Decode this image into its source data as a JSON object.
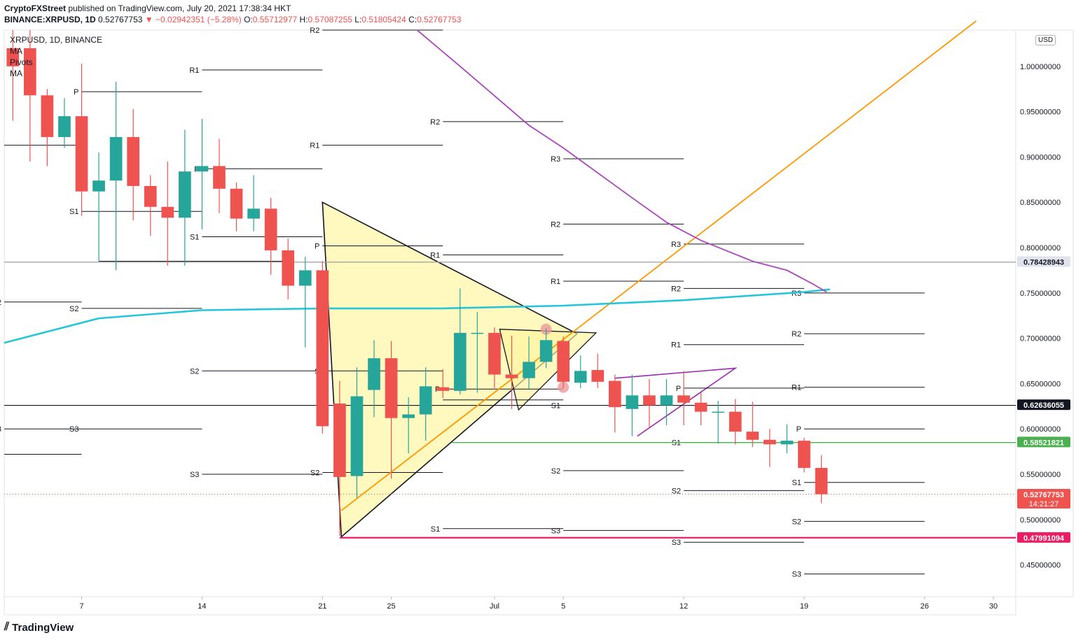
{
  "header": {
    "publisher": "CryptoFXStreet",
    "published_text": "published on TradingView.com, July 20, 2021 17:38:34 HKT",
    "symbol_line": "BINANCE:XRPUSD, 1D",
    "last": "0.52767753",
    "change": "−0.02942351 (−5.28%)",
    "o_label": "O:",
    "o": "0.55712977",
    "h_label": "H:",
    "h": "0.57087255",
    "l_label": "L:",
    "l": "0.51805424",
    "c_label": "C:",
    "c": "0.52767753"
  },
  "legend": {
    "symbol": "XRPUSD, 1D, BINANCE",
    "items": [
      "MA",
      "Pivots",
      "MA"
    ]
  },
  "branding": {
    "logo_text": "TradingView"
  },
  "currency_badge": "USD",
  "colors": {
    "up": "#26a69a",
    "down": "#ef5350",
    "ma_cyan": "#26c6da",
    "ma_purple": "#ab47bc",
    "trend_orange": "#ff9800",
    "support_red": "#e91e63",
    "support_green": "#4caf50",
    "triangle_fill": "#fff59d"
  },
  "chart_data": {
    "type": "candlestick",
    "timeframe": "1D",
    "ylim": [
      0.415,
      1.04
    ],
    "y_ticks": [
      0.45,
      0.5,
      0.55,
      0.6,
      0.65,
      0.7,
      0.75,
      0.8,
      0.85,
      0.9,
      0.95,
      1.0
    ],
    "y_tick_labels": [
      "0.45000000",
      "0.50000000",
      "0.55000000",
      "0.60000000",
      "0.65000000",
      "0.70000000",
      "0.75000000",
      "0.80000000",
      "0.85000000",
      "0.90000000",
      "0.95000000",
      "1.00000000"
    ],
    "x_ticks": [
      {
        "day": 3,
        "label": "7"
      },
      {
        "day": 10,
        "label": "14"
      },
      {
        "day": 17,
        "label": "21"
      },
      {
        "day": 21,
        "label": "25"
      },
      {
        "day": 27,
        "label": "Jul"
      },
      {
        "day": 31,
        "label": "5"
      },
      {
        "day": 38,
        "label": "12"
      },
      {
        "day": 45,
        "label": "19"
      },
      {
        "day": 52,
        "label": "26"
      },
      {
        "day": 56,
        "label": "30"
      }
    ],
    "x_range": [
      -1.5,
      57.3
    ],
    "candles": [
      {
        "day": -1,
        "o": 1.02,
        "h": 1.04,
        "l": 0.94,
        "c": 1.0
      },
      {
        "day": 0,
        "o": 1.02,
        "h": 1.04,
        "l": 0.895,
        "c": 0.968
      },
      {
        "day": 1,
        "o": 0.968,
        "h": 0.975,
        "l": 0.89,
        "c": 0.922
      },
      {
        "day": 2,
        "o": 0.922,
        "h": 0.965,
        "l": 0.91,
        "c": 0.945
      },
      {
        "day": 3,
        "o": 0.945,
        "h": 1.003,
        "l": 0.835,
        "c": 0.862
      },
      {
        "day": 4,
        "o": 0.862,
        "h": 0.905,
        "l": 0.785,
        "c": 0.874
      },
      {
        "day": 5,
        "o": 0.874,
        "h": 0.983,
        "l": 0.775,
        "c": 0.922
      },
      {
        "day": 6,
        "o": 0.922,
        "h": 0.953,
        "l": 0.83,
        "c": 0.868
      },
      {
        "day": 7,
        "o": 0.868,
        "h": 0.88,
        "l": 0.813,
        "c": 0.845
      },
      {
        "day": 8,
        "o": 0.845,
        "h": 0.895,
        "l": 0.78,
        "c": 0.833
      },
      {
        "day": 9,
        "o": 0.833,
        "h": 0.93,
        "l": 0.78,
        "c": 0.884
      },
      {
        "day": 10,
        "o": 0.884,
        "h": 0.942,
        "l": 0.82,
        "c": 0.89
      },
      {
        "day": 11,
        "o": 0.89,
        "h": 0.92,
        "l": 0.838,
        "c": 0.865
      },
      {
        "day": 12,
        "o": 0.865,
        "h": 0.872,
        "l": 0.818,
        "c": 0.832
      },
      {
        "day": 13,
        "o": 0.832,
        "h": 0.88,
        "l": 0.818,
        "c": 0.843
      },
      {
        "day": 14,
        "o": 0.843,
        "h": 0.855,
        "l": 0.77,
        "c": 0.797
      },
      {
        "day": 15,
        "o": 0.797,
        "h": 0.81,
        "l": 0.743,
        "c": 0.758
      },
      {
        "day": 16,
        "o": 0.758,
        "h": 0.79,
        "l": 0.69,
        "c": 0.775
      },
      {
        "day": 17,
        "o": 0.775,
        "h": 0.785,
        "l": 0.595,
        "c": 0.603
      },
      {
        "day": 18,
        "o": 0.628,
        "h": 0.653,
        "l": 0.482,
        "c": 0.547
      },
      {
        "day": 19,
        "o": 0.548,
        "h": 0.668,
        "l": 0.524,
        "c": 0.636
      },
      {
        "day": 20,
        "o": 0.643,
        "h": 0.698,
        "l": 0.613,
        "c": 0.678
      },
      {
        "day": 21,
        "o": 0.678,
        "h": 0.697,
        "l": 0.545,
        "c": 0.612
      },
      {
        "day": 22,
        "o": 0.612,
        "h": 0.635,
        "l": 0.573,
        "c": 0.616
      },
      {
        "day": 23,
        "o": 0.616,
        "h": 0.668,
        "l": 0.587,
        "c": 0.647
      },
      {
        "day": 24,
        "o": 0.646,
        "h": 0.666,
        "l": 0.634,
        "c": 0.642
      },
      {
        "day": 25,
        "o": 0.642,
        "h": 0.755,
        "l": 0.638,
        "c": 0.706
      },
      {
        "day": 26,
        "o": 0.706,
        "h": 0.729,
        "l": 0.64,
        "c": 0.706
      },
      {
        "day": 27,
        "o": 0.706,
        "h": 0.712,
        "l": 0.645,
        "c": 0.66
      },
      {
        "day": 28,
        "o": 0.66,
        "h": 0.703,
        "l": 0.622,
        "c": 0.656
      },
      {
        "day": 29,
        "o": 0.656,
        "h": 0.702,
        "l": 0.644,
        "c": 0.674
      },
      {
        "day": 30,
        "o": 0.674,
        "h": 0.711,
        "l": 0.667,
        "c": 0.698
      },
      {
        "day": 31,
        "o": 0.697,
        "h": 0.702,
        "l": 0.645,
        "c": 0.652
      },
      {
        "day": 32,
        "o": 0.651,
        "h": 0.681,
        "l": 0.645,
        "c": 0.664
      },
      {
        "day": 33,
        "o": 0.665,
        "h": 0.683,
        "l": 0.645,
        "c": 0.652
      },
      {
        "day": 34,
        "o": 0.653,
        "h": 0.66,
        "l": 0.596,
        "c": 0.624
      },
      {
        "day": 35,
        "o": 0.622,
        "h": 0.66,
        "l": 0.592,
        "c": 0.637
      },
      {
        "day": 36,
        "o": 0.637,
        "h": 0.655,
        "l": 0.602,
        "c": 0.626
      },
      {
        "day": 37,
        "o": 0.626,
        "h": 0.655,
        "l": 0.604,
        "c": 0.637
      },
      {
        "day": 38,
        "o": 0.637,
        "h": 0.664,
        "l": 0.604,
        "c": 0.629
      },
      {
        "day": 39,
        "o": 0.629,
        "h": 0.64,
        "l": 0.604,
        "c": 0.619
      },
      {
        "day": 40,
        "o": 0.619,
        "h": 0.631,
        "l": 0.584,
        "c": 0.619
      },
      {
        "day": 41,
        "o": 0.619,
        "h": 0.633,
        "l": 0.583,
        "c": 0.597
      },
      {
        "day": 42,
        "o": 0.597,
        "h": 0.63,
        "l": 0.58,
        "c": 0.588
      },
      {
        "day": 43,
        "o": 0.588,
        "h": 0.6,
        "l": 0.558,
        "c": 0.583
      },
      {
        "day": 44,
        "o": 0.583,
        "h": 0.605,
        "l": 0.573,
        "c": 0.587
      },
      {
        "day": 45,
        "o": 0.587,
        "h": 0.59,
        "l": 0.552,
        "c": 0.557
      },
      {
        "day": 46,
        "o": 0.557,
        "h": 0.571,
        "l": 0.518,
        "c": 0.528
      }
    ],
    "price_tags": [
      {
        "value": 0.78428943,
        "label": "0.78428943",
        "style": "gray"
      },
      {
        "value": 0.62636055,
        "label": "0.62636055",
        "style": "black"
      },
      {
        "value": 0.58521821,
        "label": "0.58521821",
        "style": "green"
      },
      {
        "value": 0.52767753,
        "label": "0.52767753",
        "sub": "14:21:27",
        "style": "red"
      },
      {
        "value": 0.47991094,
        "label": "0.47991094",
        "style": "magenta"
      }
    ],
    "pivots": [
      {
        "x0": -1.5,
        "x1": 3,
        "levels": [
          [
            "",
            0.913
          ],
          [
            "S2",
            0.74
          ],
          [
            "S3",
            0.6
          ],
          [
            "",
            0.572
          ]
        ]
      },
      {
        "x0": 3,
        "x1": 10,
        "levels": [
          [
            "P",
            0.972
          ],
          [
            "S1",
            0.84
          ],
          [
            "S2",
            0.733
          ],
          [
            "S3",
            0.6
          ]
        ]
      },
      {
        "x0": 4,
        "x1": 15,
        "levels": [
          [
            "",
            0.785
          ]
        ]
      },
      {
        "x0": 10,
        "x1": 17,
        "levels": [
          [
            "R1",
            0.996
          ],
          [
            "P",
            0.887
          ],
          [
            "S1",
            0.812
          ],
          [
            "S2",
            0.664
          ],
          [
            "S3",
            0.55
          ]
        ]
      },
      {
        "x0": 17,
        "x1": 24,
        "levels": [
          [
            "R2",
            1.04
          ],
          [
            "R1",
            0.913
          ],
          [
            "P",
            0.802
          ],
          [
            "S",
            0.664
          ],
          [
            "S2",
            0.552
          ]
        ]
      },
      {
        "x0": 24,
        "x1": 31,
        "levels": [
          [
            "R2",
            0.939
          ],
          [
            "R1",
            0.792
          ],
          [
            "P",
            0.644
          ],
          [
            "",
            0.632
          ],
          [
            "S1",
            0.49
          ]
        ]
      },
      {
        "x0": 31,
        "x1": 38,
        "levels": [
          [
            "R3",
            0.898
          ],
          [
            "R2",
            0.826
          ],
          [
            "R1",
            0.763
          ],
          [
            "S1",
            0.626
          ],
          [
            "S2",
            0.554
          ],
          [
            "S3",
            0.488
          ]
        ]
      },
      {
        "x0": 38,
        "x1": 45,
        "levels": [
          [
            "R3",
            0.804
          ],
          [
            "R2",
            0.755
          ],
          [
            "R1",
            0.693
          ],
          [
            "P",
            0.645
          ],
          [
            "S1",
            0.585
          ],
          [
            "S2",
            0.532
          ],
          [
            "S3",
            0.475
          ]
        ]
      },
      {
        "x0": 45,
        "x1": 52,
        "levels": [
          [
            "R3",
            0.75
          ],
          [
            "R2",
            0.705
          ],
          [
            "R1",
            0.646
          ],
          [
            "P",
            0.6
          ],
          [
            "S1",
            0.541
          ],
          [
            "S2",
            0.498
          ],
          [
            "S3",
            0.44
          ]
        ]
      }
    ],
    "overlays": {
      "ma_cyan": [
        [
          -1.5,
          0.695
        ],
        [
          4,
          0.722
        ],
        [
          10,
          0.731
        ],
        [
          17,
          0.733
        ],
        [
          24,
          0.733
        ],
        [
          31,
          0.736
        ],
        [
          38,
          0.742
        ],
        [
          45,
          0.751
        ],
        [
          46.5,
          0.754
        ]
      ],
      "ma_purple": [
        [
          22.5,
          1.04
        ],
        [
          25,
          1.0
        ],
        [
          29,
          0.935
        ],
        [
          31,
          0.91
        ],
        [
          35,
          0.855
        ],
        [
          37,
          0.828
        ],
        [
          39,
          0.808
        ],
        [
          42,
          0.785
        ],
        [
          44,
          0.775
        ],
        [
          45.5,
          0.76
        ],
        [
          46.3,
          0.751
        ]
      ],
      "trend_orange": [
        [
          18.1,
          0.51
        ],
        [
          55,
          1.05
        ]
      ],
      "support_red": [
        [
          18,
          0.48
        ],
        [
          57.3,
          0.48
        ]
      ],
      "support_green": [
        [
          24.5,
          0.585
        ],
        [
          57.3,
          0.585
        ]
      ],
      "line_gray": [
        [
          -1.5,
          0.784
        ],
        [
          57.3,
          0.784
        ]
      ],
      "line_black": [
        [
          -1.5,
          0.626
        ],
        [
          57.3,
          0.626
        ]
      ],
      "triangle_big": [
        [
          17,
          0.85
        ],
        [
          31.8,
          0.705
        ],
        [
          18.1,
          0.481
        ]
      ],
      "triangle_small": [
        [
          27.3,
          0.71
        ],
        [
          32.9,
          0.706
        ],
        [
          28.4,
          0.621
        ]
      ],
      "wedge_purple": [
        [
          34,
          0.656
        ],
        [
          41,
          0.667
        ],
        [
          35.3,
          0.592
        ]
      ],
      "pivot_markers": [
        {
          "day": 30,
          "value": 0.71
        },
        {
          "day": 31,
          "value": 0.646
        }
      ]
    }
  }
}
